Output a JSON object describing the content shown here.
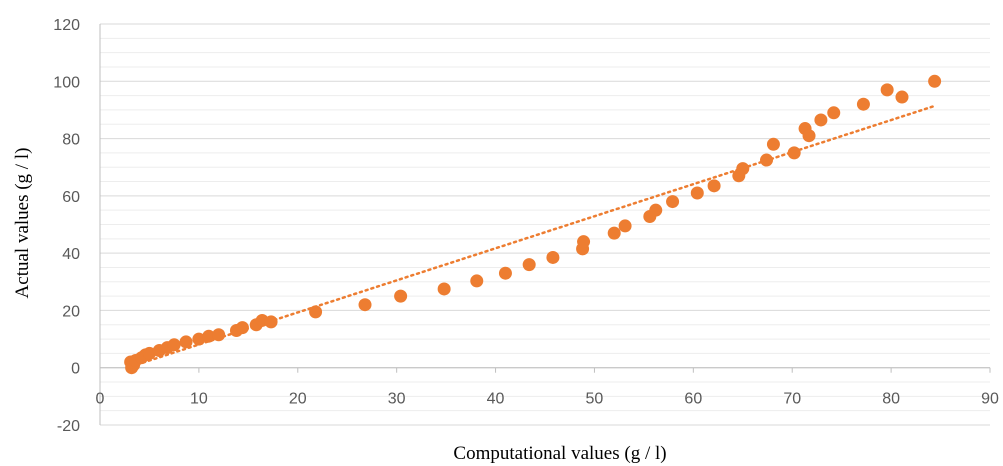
{
  "chart_data": {
    "type": "scatter",
    "xlabel": "Computational values (g / l)",
    "ylabel": "Actual values (g / l)",
    "xlim": [
      0,
      90
    ],
    "ylim": [
      -20,
      120
    ],
    "x_ticks": [
      "0",
      "10",
      "20",
      "30",
      "40",
      "50",
      "60",
      "70",
      "80",
      "90"
    ],
    "y_ticks": [
      "-20",
      "0",
      "20",
      "40",
      "60",
      "80",
      "100",
      "120"
    ],
    "grid": "horizontal",
    "legend": "none",
    "series": [
      {
        "color": "#ED7D31",
        "points": [
          [
            3.2,
            0.0
          ],
          [
            3.4,
            1.0
          ],
          [
            3.1,
            2.0
          ],
          [
            3.6,
            2.5
          ],
          [
            4.2,
            3.5
          ],
          [
            4.6,
            4.5
          ],
          [
            5.0,
            5.0
          ],
          [
            6.0,
            6.0
          ],
          [
            6.8,
            7.0
          ],
          [
            7.5,
            8.0
          ],
          [
            8.7,
            9.0
          ],
          [
            10.0,
            10.0
          ],
          [
            11.0,
            11.0
          ],
          [
            12.0,
            11.5
          ],
          [
            13.8,
            13.0
          ],
          [
            14.4,
            14.0
          ],
          [
            15.8,
            15.0
          ],
          [
            16.4,
            16.5
          ],
          [
            17.3,
            16.0
          ],
          [
            21.8,
            19.5
          ],
          [
            26.8,
            22.0
          ],
          [
            30.4,
            25.0
          ],
          [
            34.8,
            27.5
          ],
          [
            38.1,
            30.3
          ],
          [
            41.0,
            33.0
          ],
          [
            43.4,
            36.0
          ],
          [
            45.8,
            38.5
          ],
          [
            48.8,
            41.5
          ],
          [
            48.9,
            44.0
          ],
          [
            52.0,
            47.0
          ],
          [
            53.1,
            49.5
          ],
          [
            55.6,
            52.8
          ],
          [
            56.2,
            55.0
          ],
          [
            57.9,
            58.0
          ],
          [
            60.4,
            61.0
          ],
          [
            62.1,
            63.5
          ],
          [
            64.6,
            67.0
          ],
          [
            65.0,
            69.5
          ],
          [
            67.4,
            72.5
          ],
          [
            68.1,
            78.0
          ],
          [
            70.2,
            75.0
          ],
          [
            71.3,
            83.5
          ],
          [
            71.7,
            81.0
          ],
          [
            72.9,
            86.5
          ],
          [
            74.2,
            89.0
          ],
          [
            77.2,
            92.0
          ],
          [
            79.6,
            97.0
          ],
          [
            81.1,
            94.5
          ],
          [
            84.4,
            100.0
          ]
        ]
      }
    ],
    "trendline": {
      "style": "dotted",
      "color": "#ED7D31",
      "from": [
        3.2,
        0.5
      ],
      "to": [
        84.5,
        91.5
      ]
    }
  }
}
